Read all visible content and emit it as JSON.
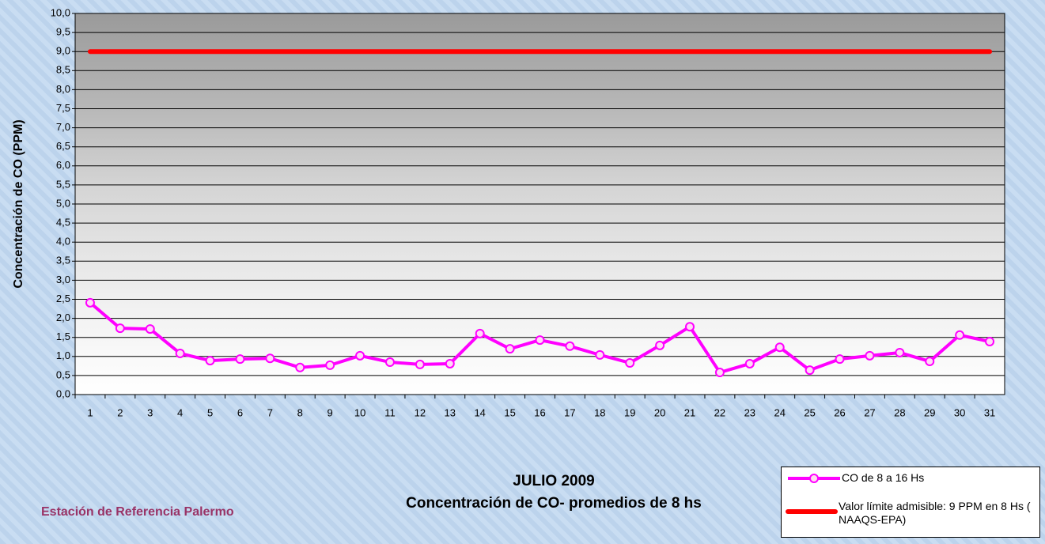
{
  "chart_data": {
    "type": "line",
    "title": "JULIO 2009",
    "subtitle": "Concentración de CO- promedios de 8 hs",
    "annotation": "Estación de Referencia Palermo",
    "y_label": "Concentración de CO (PPM)",
    "categories": [
      "1",
      "2",
      "3",
      "4",
      "5",
      "6",
      "7",
      "8",
      "9",
      "10",
      "11",
      "12",
      "13",
      "14",
      "15",
      "16",
      "17",
      "18",
      "19",
      "20",
      "21",
      "22",
      "23",
      "24",
      "25",
      "26",
      "27",
      "28",
      "29",
      "30",
      "31"
    ],
    "series": [
      {
        "name": "CO de 8 a 16 Hs",
        "color": "#ff00ff",
        "values": [
          2.41,
          1.74,
          1.72,
          1.08,
          0.89,
          0.93,
          0.95,
          0.71,
          0.77,
          1.02,
          0.85,
          0.79,
          0.81,
          1.6,
          1.2,
          1.43,
          1.27,
          1.04,
          0.83,
          1.29,
          1.78,
          0.58,
          0.81,
          1.24,
          0.64,
          0.93,
          1.02,
          1.1,
          0.87,
          1.56,
          1.39
        ]
      }
    ],
    "reference_line": {
      "name": "Valor límite admisible: 9 PPM en 8 Hs ( NAAQS-EPA)",
      "value": 9,
      "color": "#ff0000"
    },
    "ylim": [
      0,
      10
    ],
    "yticks": [
      {
        "value": 0,
        "label": "0,0"
      },
      {
        "value": 0.5,
        "label": "0,5"
      },
      {
        "value": 1,
        "label": "1,0"
      },
      {
        "value": 1.5,
        "label": "1,5"
      },
      {
        "value": 2,
        "label": "2,0"
      },
      {
        "value": 2.5,
        "label": "2,5"
      },
      {
        "value": 3,
        "label": "3,0"
      },
      {
        "value": 3.5,
        "label": "3,5"
      },
      {
        "value": 4,
        "label": "4,0"
      },
      {
        "value": 4.5,
        "label": "4,5"
      },
      {
        "value": 5,
        "label": "5,0"
      },
      {
        "value": 5.5,
        "label": "5,5"
      },
      {
        "value": 6,
        "label": "6,0"
      },
      {
        "value": 6.5,
        "label": "6,5"
      },
      {
        "value": 7,
        "label": "7,0"
      },
      {
        "value": 7.5,
        "label": "7,5"
      },
      {
        "value": 8,
        "label": "8,0"
      },
      {
        "value": 8.5,
        "label": "8,5"
      },
      {
        "value": 9,
        "label": "9,0"
      },
      {
        "value": 9.5,
        "label": "9,5"
      },
      {
        "value": 10,
        "label": "10,0"
      }
    ],
    "grid": true
  }
}
